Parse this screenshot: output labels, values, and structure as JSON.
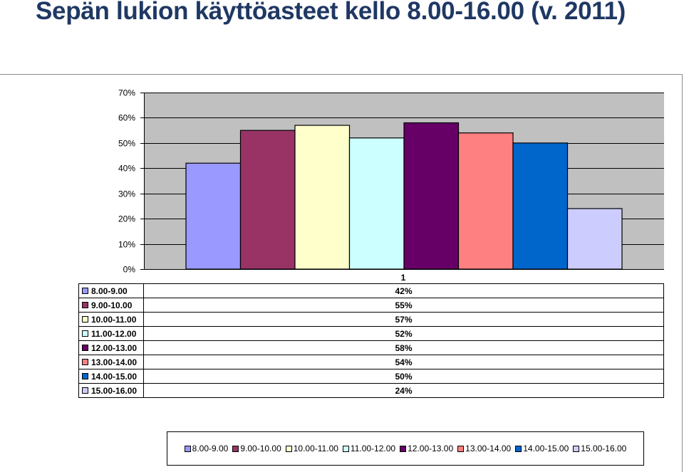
{
  "title": "Sepän lukion käyttöasteet kello 8.00-16.00 (v. 2011)",
  "colors": {
    "plot_bg": "#c0c0c0",
    "grid": "#000000",
    "title_text": "#1f3864"
  },
  "chart_data": {
    "type": "bar",
    "categories": [
      "1"
    ],
    "series": [
      {
        "name": "8.00-9.00",
        "value": 0.42,
        "label": "42%",
        "color": "#9999ff"
      },
      {
        "name": "9.00-10.00",
        "value": 0.55,
        "label": "55%",
        "color": "#993366"
      },
      {
        "name": "10.00-11.00",
        "value": 0.57,
        "label": "57%",
        "color": "#ffffcc"
      },
      {
        "name": "11.00-12.00",
        "value": 0.52,
        "label": "52%",
        "color": "#ccffff"
      },
      {
        "name": "12.00-13.00",
        "value": 0.58,
        "label": "58%",
        "color": "#660066"
      },
      {
        "name": "13.00-14.00",
        "value": 0.54,
        "label": "54%",
        "color": "#ff8080"
      },
      {
        "name": "14.00-15.00",
        "value": 0.5,
        "label": "50%",
        "color": "#0066cc"
      },
      {
        "name": "15.00-16.00",
        "value": 0.24,
        "label": "24%",
        "color": "#ccccff"
      }
    ],
    "ylim": [
      0,
      0.7
    ],
    "yticks": [
      {
        "value": 0.0,
        "label": "0%"
      },
      {
        "value": 0.1,
        "label": "10%"
      },
      {
        "value": 0.2,
        "label": "20%"
      },
      {
        "value": 0.3,
        "label": "30%"
      },
      {
        "value": 0.4,
        "label": "40%"
      },
      {
        "value": 0.5,
        "label": "50%"
      },
      {
        "value": 0.6,
        "label": "60%"
      },
      {
        "value": 0.7,
        "label": "70%"
      }
    ],
    "grid": true,
    "legend_position": "bottom",
    "data_table": true
  }
}
